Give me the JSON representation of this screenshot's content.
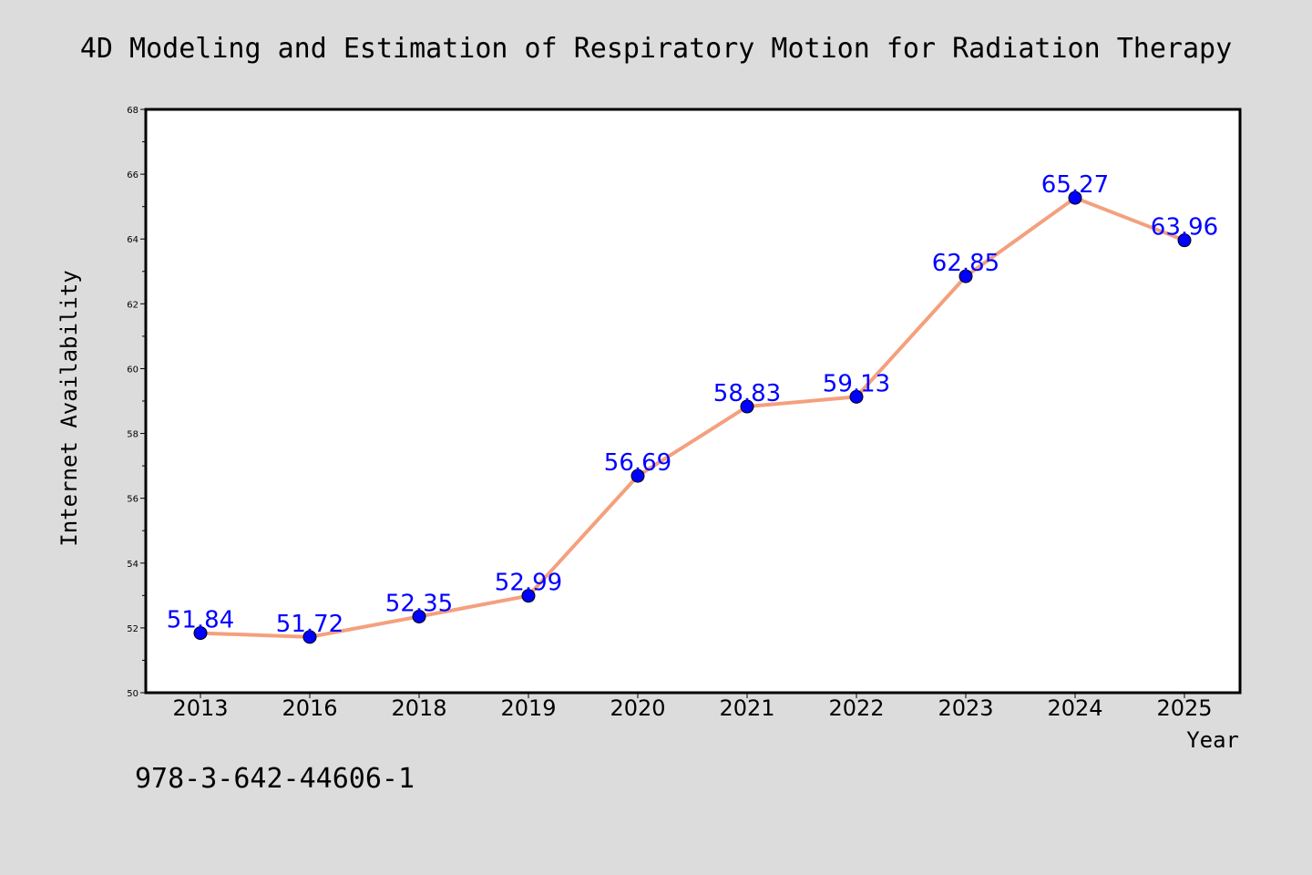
{
  "chart_data": {
    "type": "line",
    "title": "4D Modeling and Estimation of Respiratory Motion for Radiation Therapy",
    "xlabel": "Year",
    "ylabel": "Internet Availability",
    "categories": [
      "2013",
      "2016",
      "2018",
      "2019",
      "2020",
      "2021",
      "2022",
      "2023",
      "2024",
      "2025"
    ],
    "series": [
      {
        "values": [
          51.84,
          51.72,
          52.35,
          52.99,
          56.69,
          58.83,
          59.13,
          62.85,
          65.27,
          63.96
        ],
        "data_labels": [
          "51.84",
          "51.72",
          "52.35",
          "52.99",
          "56.69",
          "58.83",
          "59.13",
          "62.85",
          "65.27",
          "63.96"
        ],
        "line_color": "#f4a07e",
        "marker_color": "#0000ff"
      }
    ],
    "ylim": [
      50,
      68
    ],
    "yticks": [
      "50",
      "52",
      "54",
      "56",
      "58",
      "60",
      "62",
      "64",
      "66",
      "68"
    ],
    "grid": false,
    "legend": "none"
  },
  "footer": {
    "isbn": "978-3-642-44606-1"
  },
  "colors": {
    "background": "#dcdcdc",
    "plot_background": "#ffffff"
  }
}
